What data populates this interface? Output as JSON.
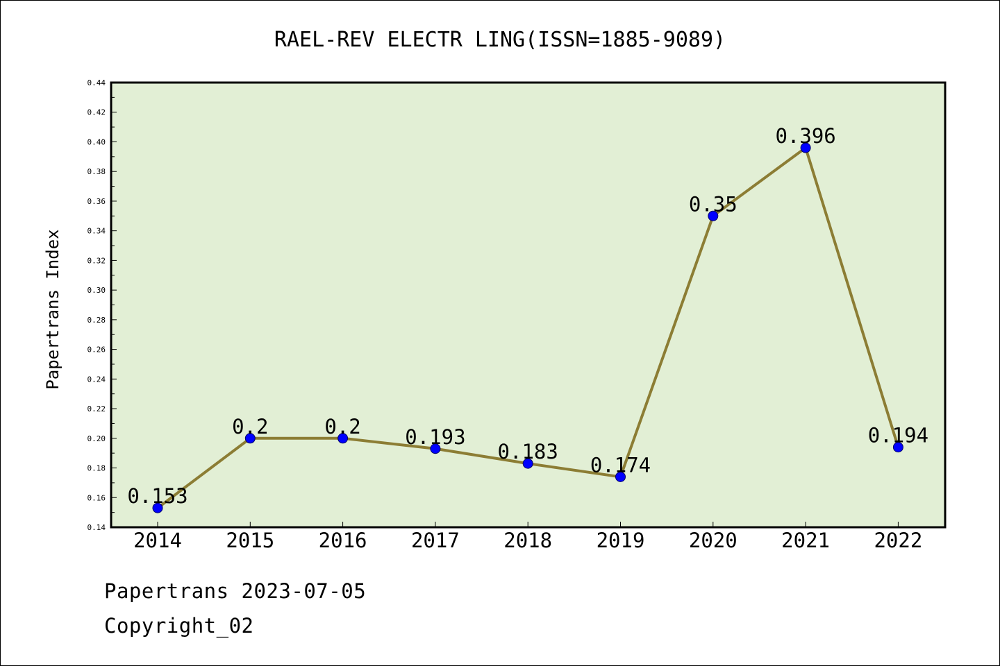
{
  "chart_data": {
    "type": "line",
    "title": "RAEL-REV ELECTR LING(ISSN=1885-9089)",
    "xlabel": "",
    "ylabel": "Papertrans Index",
    "categories": [
      "2014",
      "2015",
      "2016",
      "2017",
      "2018",
      "2019",
      "2020",
      "2021",
      "2022"
    ],
    "values": [
      0.153,
      0.2,
      0.2,
      0.193,
      0.183,
      0.174,
      0.35,
      0.396,
      0.194
    ],
    "value_labels": [
      "0.153",
      "0.2",
      "0.2",
      "0.193",
      "0.183",
      "0.174",
      "0.35",
      "0.396",
      "0.194"
    ],
    "ylim": [
      0.14,
      0.44
    ],
    "yticks": [
      "0.14",
      "0.16",
      "0.18",
      "0.20",
      "0.22",
      "0.24",
      "0.26",
      "0.28",
      "0.30",
      "0.32",
      "0.34",
      "0.36",
      "0.38",
      "0.40",
      "0.42",
      "0.44"
    ],
    "grid": false,
    "colors": {
      "plot_background": "#e2efd5",
      "line": "#8c7d34",
      "marker": "#0000ff"
    }
  },
  "footer": {
    "source": "Papertrans 2023-07-05",
    "copyright": "Copyright_02"
  }
}
